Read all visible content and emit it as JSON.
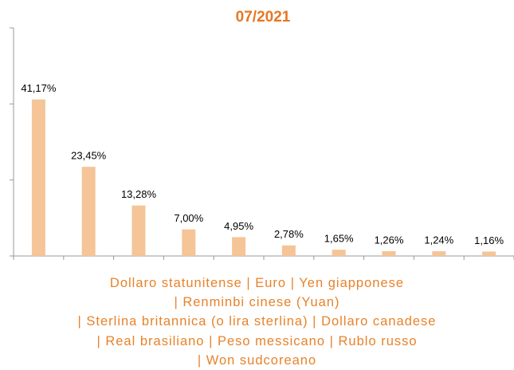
{
  "chart_data": {
    "type": "bar",
    "title": "07/2021",
    "categories": [
      "Dollaro statunitense",
      "Euro",
      "Yen giapponese",
      "Renminbi cinese (Yuan)",
      "Sterlina britannica (o lira sterlina)",
      "Dollaro canadese",
      "Real brasiliano",
      "Peso messicano",
      "Rublo russo",
      "Won sudcoreano"
    ],
    "separator": "|",
    "values": [
      41.17,
      23.45,
      13.28,
      7.0,
      4.95,
      2.78,
      1.65,
      1.26,
      1.24,
      1.16
    ],
    "value_labels": [
      "41,17%",
      "23,45%",
      "13,28%",
      "7,00%",
      "4,95%",
      "2,78%",
      "1,65%",
      "1,26%",
      "1,24%",
      "1,16%"
    ],
    "color": "#f5c497",
    "title_color": "#e87722",
    "ylim": [
      0,
      60
    ],
    "yticks": [
      0,
      20,
      40,
      60
    ],
    "grid": false
  }
}
